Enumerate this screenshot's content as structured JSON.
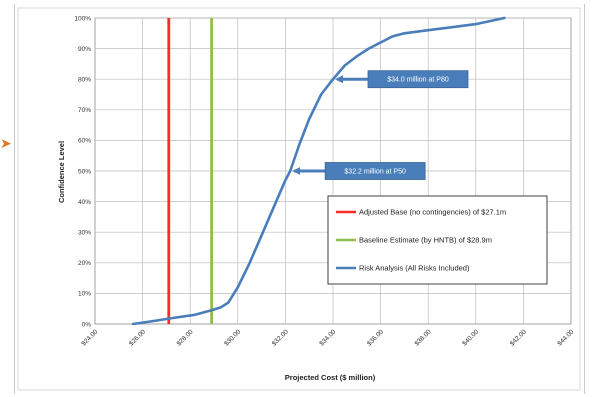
{
  "chart_data": {
    "type": "line",
    "title": "",
    "xlabel": "Projected Cost ($ million)",
    "ylabel": "Confidence Level",
    "xlim": [
      24,
      44
    ],
    "ylim": [
      0,
      100
    ],
    "x_tick_labels": [
      "$24.00",
      "$26.00",
      "$28.00",
      "$30.00",
      "$32.00",
      "$34.00",
      "$36.00",
      "$38.00",
      "$40.00",
      "$42.00",
      "$44.00"
    ],
    "y_tick_labels": [
      "0%",
      "10%",
      "20%",
      "30%",
      "40%",
      "50%",
      "60%",
      "70%",
      "80%",
      "90%",
      "100%"
    ],
    "grid": true,
    "legend_position": "lower-right",
    "series": [
      {
        "name": "Adjusted Base (no contingencies) of $27.1m",
        "kind": "vertical-line",
        "x": 27.1,
        "color": "#ff2a2a"
      },
      {
        "name": "Baseline Estimate (by HNTB) of $28.9m",
        "kind": "vertical-line",
        "x": 28.9,
        "color": "#8fbf4a"
      },
      {
        "name": "Risk Analysis (All Risks Included)",
        "kind": "curve",
        "color": "#4a7ebb",
        "points": [
          [
            25.6,
            0
          ],
          [
            26.5,
            1
          ],
          [
            27.3,
            2
          ],
          [
            28.2,
            3
          ],
          [
            28.9,
            4.5
          ],
          [
            29.3,
            5.5
          ],
          [
            29.6,
            7
          ],
          [
            30.0,
            12
          ],
          [
            30.5,
            20
          ],
          [
            31.0,
            29
          ],
          [
            31.5,
            38
          ],
          [
            32.0,
            47
          ],
          [
            32.2,
            50
          ],
          [
            32.6,
            59
          ],
          [
            33.0,
            67
          ],
          [
            33.5,
            75
          ],
          [
            34.0,
            80
          ],
          [
            34.5,
            84.5
          ],
          [
            35.0,
            87.5
          ],
          [
            35.5,
            90
          ],
          [
            36.0,
            92
          ],
          [
            36.5,
            94
          ],
          [
            37.0,
            95
          ],
          [
            38.0,
            96
          ],
          [
            39.0,
            97
          ],
          [
            40.0,
            98
          ],
          [
            41.2,
            100
          ]
        ]
      }
    ],
    "annotations": [
      {
        "text": "$34.0 million at P80",
        "x": 34.0,
        "y": 80
      },
      {
        "text": "$32.2 million at P50",
        "x": 32.2,
        "y": 50
      }
    ]
  }
}
